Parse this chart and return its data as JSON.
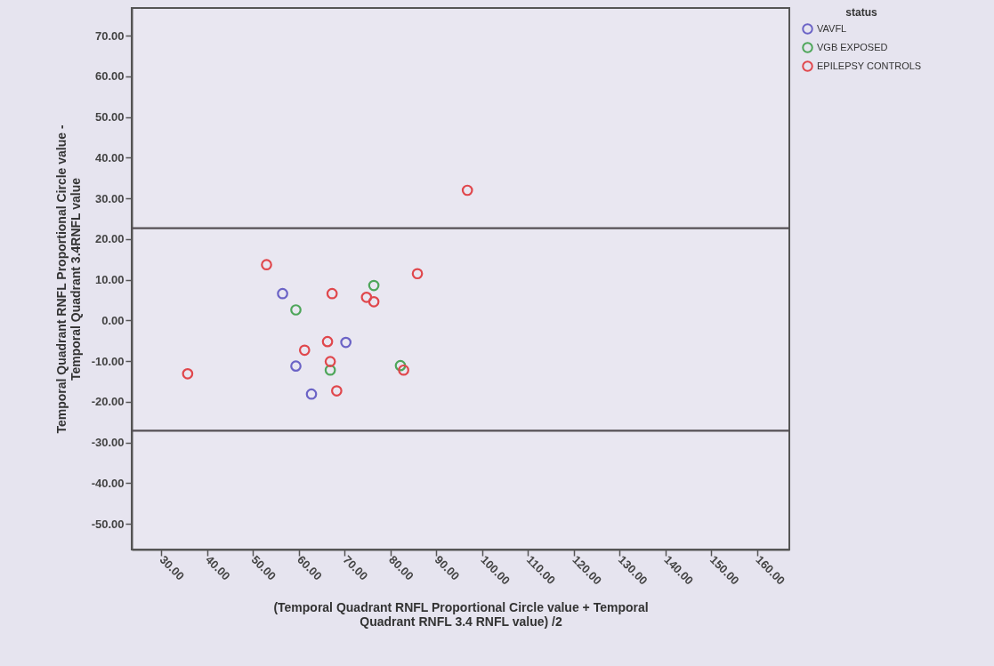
{
  "chart_data": {
    "type": "scatter",
    "xlabel": "(Temporal Quadrant RNFL Proportional Circle value + Temporal\nQuadrant RNFL 3.4 RNFL value) /2",
    "ylabel": "Temporal Quadrant RNFL Proportional Circle value -\nTemporal Quadrant 3.4RNFL value",
    "legend_title": "status",
    "legend": "top right",
    "marker": "circle",
    "grid": false,
    "xlim": [
      23.6,
      167
    ],
    "ylim": [
      -56.3,
      76.8
    ],
    "xticks": [
      {
        "value": 30,
        "label": "30.00"
      },
      {
        "value": 40,
        "label": "40.00"
      },
      {
        "value": 50,
        "label": "50.00"
      },
      {
        "value": 60,
        "label": "60.00"
      },
      {
        "value": 70,
        "label": "70.00"
      },
      {
        "value": 80,
        "label": "80.00"
      },
      {
        "value": 90,
        "label": "90.00"
      },
      {
        "value": 100,
        "label": "100.00"
      },
      {
        "value": 110,
        "label": "110.00"
      },
      {
        "value": 120,
        "label": "120.00"
      },
      {
        "value": 130,
        "label": "130.00"
      },
      {
        "value": 140,
        "label": "140.00"
      },
      {
        "value": 150,
        "label": "150.00"
      },
      {
        "value": 160,
        "label": "160.00"
      }
    ],
    "yticks": [
      {
        "value": -50,
        "label": "-50.00"
      },
      {
        "value": -40,
        "label": "-40.00"
      },
      {
        "value": -30,
        "label": "-30.00"
      },
      {
        "value": -20,
        "label": "-20.00"
      },
      {
        "value": -10,
        "label": "-10.00"
      },
      {
        "value": 0,
        "label": "0.00"
      },
      {
        "value": 10,
        "label": "10.00"
      },
      {
        "value": 20,
        "label": "20.00"
      },
      {
        "value": 30,
        "label": "30.00"
      },
      {
        "value": 40,
        "label": "40.00"
      },
      {
        "value": 50,
        "label": "50.00"
      },
      {
        "value": 60,
        "label": "60.00"
      },
      {
        "value": 70,
        "label": "70.00"
      }
    ],
    "series": [
      {
        "name": "VAVFL",
        "color": "#6b63c6",
        "x": [
          56.5,
          70.3,
          59.4,
          62.8
        ],
        "values": [
          6.6,
          -5.4,
          -11.2,
          -18.1
        ]
      },
      {
        "name": "VGB EXPOSED",
        "color": "#4ea65a",
        "x": [
          76.4,
          59.4,
          66.9,
          82.2
        ],
        "values": [
          8.6,
          2.6,
          -12.2,
          -11.1
        ]
      },
      {
        "name": "EPILEPSY CONTROLS",
        "color": "#e0474c",
        "x": [
          53.0,
          67.3,
          74.8,
          76.4,
          85.9,
          66.3,
          61.3,
          66.9,
          82.9,
          35.8,
          68.3,
          96.8
        ],
        "values": [
          13.7,
          6.6,
          5.7,
          4.6,
          11.5,
          -5.2,
          -7.3,
          -10.1,
          -12.2,
          -13.1,
          -17.3,
          32.0
        ]
      }
    ],
    "ref_lines": [
      {
        "axis": "y",
        "value": 22.7,
        "color": "#555055"
      },
      {
        "axis": "y",
        "value": -27.1,
        "color": "#555055"
      }
    ]
  }
}
